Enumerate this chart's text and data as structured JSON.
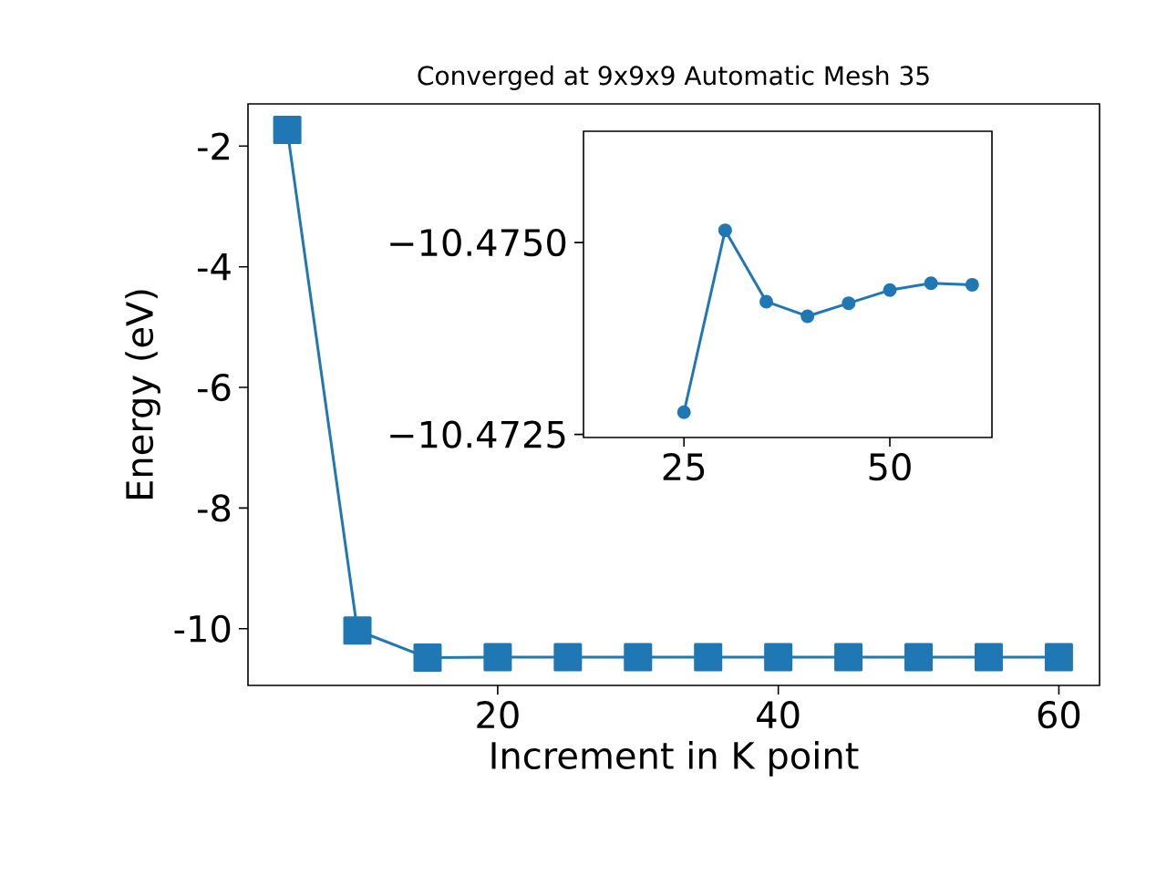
{
  "chart_data": [
    {
      "type": "line",
      "title": "Converged at 9x9x9 Automatic Mesh 35",
      "xlabel": "Increment in K point",
      "ylabel": "Energy (eV)",
      "x": [
        5,
        10,
        15,
        20,
        25,
        30,
        35,
        40,
        45,
        50,
        55,
        60
      ],
      "values": [
        -1.73,
        -10.03,
        -10.48,
        -10.47,
        -10.47,
        -10.47,
        -10.47,
        -10.47,
        -10.47,
        -10.47,
        -10.47,
        -10.47
      ],
      "color": "#1f77b4",
      "marker": "square",
      "xlim": [
        2.2,
        62.9
      ],
      "ylim": [
        -10.94,
        -1.3
      ],
      "xticks": [
        20,
        40,
        60
      ],
      "yticks": [
        -10,
        -8,
        -6,
        -4,
        -2
      ]
    },
    {
      "type": "line",
      "x": [
        25,
        30,
        35,
        40,
        45,
        50,
        55,
        60
      ],
      "values": [
        -10.47279,
        -10.47516,
        -10.47423,
        -10.47404,
        -10.47421,
        -10.47438,
        -10.47447,
        -10.47445
      ],
      "color": "#1f77b4",
      "marker": "circle",
      "xlim": [
        12.8,
        62.4
      ],
      "ylim": [
        -10.47246,
        -10.47645
      ],
      "xticks": [
        25,
        50
      ],
      "yticks": [
        {
          "value": -10.475,
          "label": "−10.4750"
        },
        {
          "value": -10.4725,
          "label": "−10.4725"
        }
      ]
    }
  ]
}
